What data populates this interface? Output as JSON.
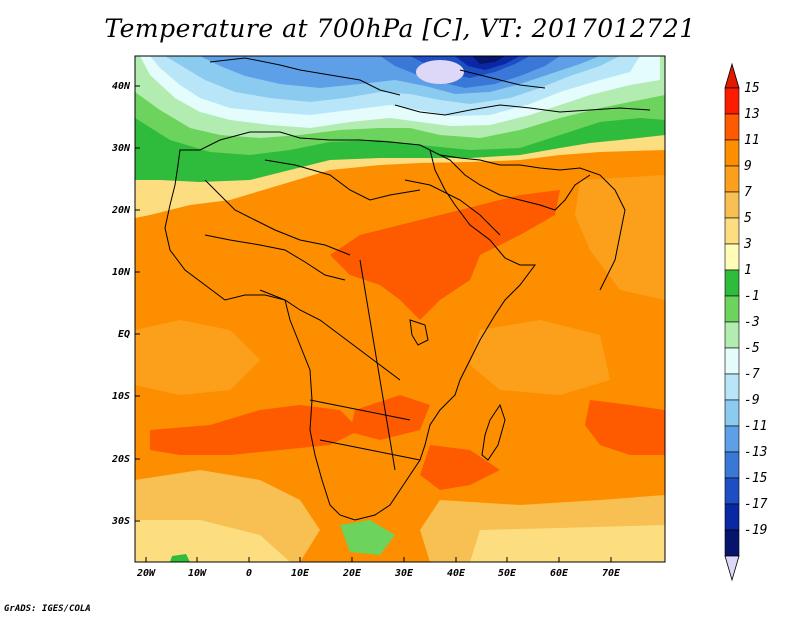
{
  "title": "Temperature at 700hPa [C], VT: 2017012721",
  "credit": "GrADS: IGES/COLA",
  "map": {
    "lat_labels": [
      "40N",
      "30N",
      "20N",
      "10N",
      "EQ",
      "10S",
      "20S",
      "30S"
    ],
    "lon_labels": [
      "20W",
      "10W",
      "0",
      "10E",
      "20E",
      "30E",
      "40E",
      "50E",
      "60E",
      "70E"
    ]
  },
  "colorbar": {
    "labels": [
      "15",
      "13",
      "11",
      "9",
      "7",
      "5",
      "3",
      "1",
      "-1",
      "-3",
      "-5",
      "-7",
      "-9",
      "-11",
      "-13",
      "-15",
      "-17",
      "-19"
    ],
    "colors": [
      "#fe1c00",
      "#fe5a00",
      "#fd8e00",
      "#fca01c",
      "#f8c052",
      "#fcde80",
      "#fefcb6",
      "#2fbb3c",
      "#6cd35c",
      "#b2ecb0",
      "#e4fcfc",
      "#b8e6f8",
      "#8ccbf0",
      "#5ea0e8",
      "#3a78d8",
      "#1e4ec4",
      "#0a28a4",
      "#06146c"
    ],
    "top_arrow_color": "#e21a00",
    "bottom_arrow_color": "#ddd8f8"
  }
}
